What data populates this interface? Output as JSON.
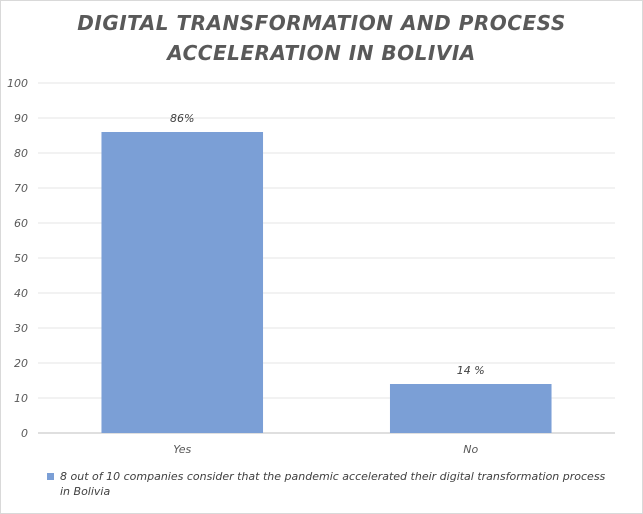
{
  "chart_data": {
    "type": "bar",
    "title_lines": [
      "DIGITAL TRANSFORMATION AND PROCESS",
      "ACCELERATION IN BOLIVIA"
    ],
    "categories": [
      "Yes",
      "No"
    ],
    "series": [
      {
        "name": "8 out of 10 companies consider that the pandemic accelerated their digital transformation process in Bolivia",
        "values": [
          86,
          14
        ],
        "data_labels": [
          "86%",
          "14 %"
        ],
        "color": "#7b9fd6"
      }
    ],
    "xlabel": "",
    "ylabel": "",
    "ylim": [
      0,
      100
    ],
    "yticks": [
      0,
      10,
      20,
      30,
      40,
      50,
      60,
      70,
      80,
      90,
      100
    ],
    "grid": true,
    "legend_position": "bottom"
  }
}
